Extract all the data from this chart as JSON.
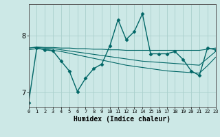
{
  "xlabel": "Humidex (Indice chaleur)",
  "x_ticks": [
    0,
    1,
    2,
    3,
    4,
    5,
    6,
    7,
    8,
    9,
    10,
    11,
    12,
    13,
    14,
    15,
    16,
    17,
    18,
    19,
    20,
    21,
    22,
    23
  ],
  "y_ticks": [
    7,
    8
  ],
  "ylim": [
    6.75,
    8.55
  ],
  "xlim": [
    0,
    23
  ],
  "bg_color": "#cce8e6",
  "grid_color": "#aacfcc",
  "line_color": "#006666",
  "series": [
    {
      "x": [
        0,
        1,
        2,
        3,
        4,
        5,
        6,
        7,
        8,
        9,
        10,
        11,
        12,
        13,
        14,
        15,
        16,
        17,
        18,
        19,
        20,
        21,
        22,
        23
      ],
      "y": [
        6.82,
        7.78,
        7.75,
        7.73,
        7.55,
        7.38,
        7.02,
        7.25,
        7.42,
        7.5,
        7.82,
        8.28,
        7.93,
        8.07,
        8.38,
        7.68,
        7.68,
        7.68,
        7.72,
        7.58,
        7.38,
        7.3,
        7.78,
        7.75
      ],
      "marker": "D",
      "marker_size": 2.5,
      "linewidth": 1.0
    },
    {
      "x": [
        0,
        1,
        2,
        3,
        4,
        5,
        6,
        7,
        8,
        9,
        10,
        11,
        12,
        13,
        14,
        15,
        16,
        17,
        18,
        19,
        20,
        21,
        22,
        23
      ],
      "y": [
        7.78,
        7.8,
        7.79,
        7.79,
        7.78,
        7.78,
        7.77,
        7.77,
        7.76,
        7.76,
        7.75,
        7.75,
        7.74,
        7.74,
        7.74,
        7.74,
        7.74,
        7.74,
        7.74,
        7.74,
        7.74,
        7.74,
        7.76,
        7.78
      ],
      "marker": null,
      "linewidth": 0.8
    },
    {
      "x": [
        0,
        1,
        2,
        3,
        4,
        5,
        6,
        7,
        8,
        9,
        10,
        11,
        12,
        13,
        14,
        15,
        16,
        17,
        18,
        19,
        20,
        21,
        22,
        23
      ],
      "y": [
        7.78,
        7.79,
        7.78,
        7.77,
        7.75,
        7.73,
        7.71,
        7.69,
        7.67,
        7.65,
        7.63,
        7.61,
        7.59,
        7.57,
        7.55,
        7.54,
        7.53,
        7.52,
        7.51,
        7.5,
        7.49,
        7.48,
        7.6,
        7.72
      ],
      "marker": null,
      "linewidth": 0.8
    },
    {
      "x": [
        0,
        1,
        2,
        3,
        4,
        5,
        6,
        7,
        8,
        9,
        10,
        11,
        12,
        13,
        14,
        15,
        16,
        17,
        18,
        19,
        20,
        21,
        22,
        23
      ],
      "y": [
        7.75,
        7.77,
        7.76,
        7.74,
        7.72,
        7.69,
        7.66,
        7.63,
        7.6,
        7.57,
        7.54,
        7.51,
        7.48,
        7.46,
        7.44,
        7.42,
        7.4,
        7.38,
        7.37,
        7.36,
        7.35,
        7.34,
        7.47,
        7.62
      ],
      "marker": null,
      "linewidth": 0.8
    }
  ]
}
